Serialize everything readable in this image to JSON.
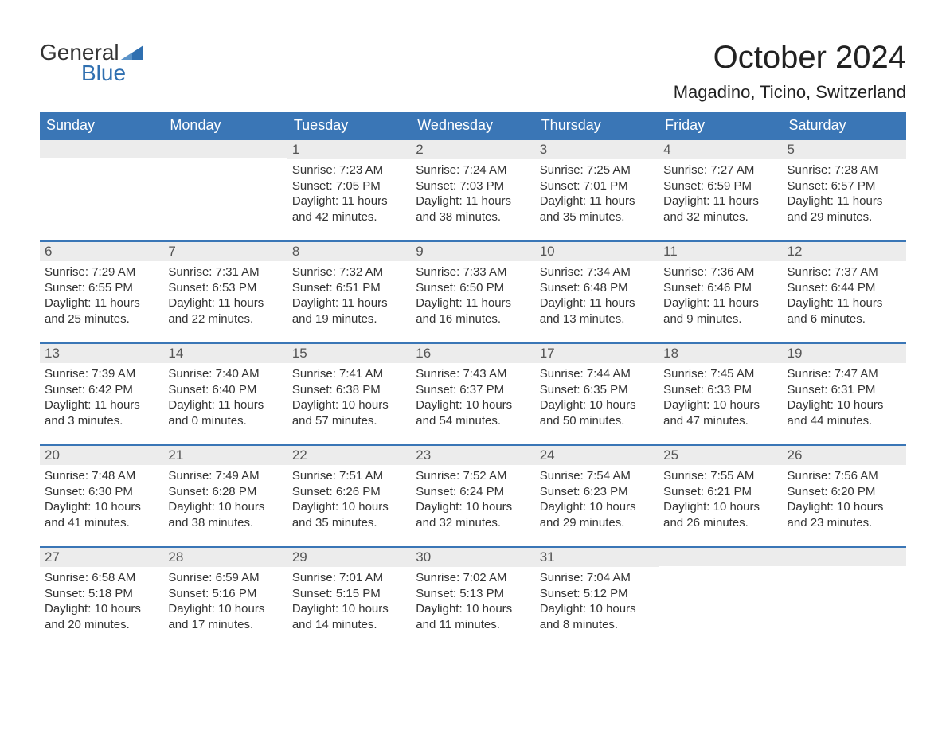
{
  "brand": {
    "word1": "General",
    "word2": "Blue",
    "logo_color": "#2f6fb0",
    "text_color": "#333333"
  },
  "header": {
    "month_title": "October 2024",
    "location": "Magadino, Ticino, Switzerland"
  },
  "styling": {
    "header_bg": "#3a76b6",
    "header_text": "#ffffff",
    "day_number_bg": "#ececec",
    "day_number_border": "#3a76b6",
    "body_text": "#333333",
    "page_bg": "#ffffff",
    "title_fontsize": 40,
    "location_fontsize": 22,
    "header_fontsize": 18,
    "day_number_fontsize": 17,
    "content_fontsize": 15
  },
  "weekdays": [
    "Sunday",
    "Monday",
    "Tuesday",
    "Wednesday",
    "Thursday",
    "Friday",
    "Saturday"
  ],
  "weeks": [
    [
      {
        "empty": true
      },
      {
        "empty": true
      },
      {
        "day": "1",
        "sunrise": "Sunrise: 7:23 AM",
        "sunset": "Sunset: 7:05 PM",
        "daylight1": "Daylight: 11 hours",
        "daylight2": "and 42 minutes."
      },
      {
        "day": "2",
        "sunrise": "Sunrise: 7:24 AM",
        "sunset": "Sunset: 7:03 PM",
        "daylight1": "Daylight: 11 hours",
        "daylight2": "and 38 minutes."
      },
      {
        "day": "3",
        "sunrise": "Sunrise: 7:25 AM",
        "sunset": "Sunset: 7:01 PM",
        "daylight1": "Daylight: 11 hours",
        "daylight2": "and 35 minutes."
      },
      {
        "day": "4",
        "sunrise": "Sunrise: 7:27 AM",
        "sunset": "Sunset: 6:59 PM",
        "daylight1": "Daylight: 11 hours",
        "daylight2": "and 32 minutes."
      },
      {
        "day": "5",
        "sunrise": "Sunrise: 7:28 AM",
        "sunset": "Sunset: 6:57 PM",
        "daylight1": "Daylight: 11 hours",
        "daylight2": "and 29 minutes."
      }
    ],
    [
      {
        "day": "6",
        "sunrise": "Sunrise: 7:29 AM",
        "sunset": "Sunset: 6:55 PM",
        "daylight1": "Daylight: 11 hours",
        "daylight2": "and 25 minutes."
      },
      {
        "day": "7",
        "sunrise": "Sunrise: 7:31 AM",
        "sunset": "Sunset: 6:53 PM",
        "daylight1": "Daylight: 11 hours",
        "daylight2": "and 22 minutes."
      },
      {
        "day": "8",
        "sunrise": "Sunrise: 7:32 AM",
        "sunset": "Sunset: 6:51 PM",
        "daylight1": "Daylight: 11 hours",
        "daylight2": "and 19 minutes."
      },
      {
        "day": "9",
        "sunrise": "Sunrise: 7:33 AM",
        "sunset": "Sunset: 6:50 PM",
        "daylight1": "Daylight: 11 hours",
        "daylight2": "and 16 minutes."
      },
      {
        "day": "10",
        "sunrise": "Sunrise: 7:34 AM",
        "sunset": "Sunset: 6:48 PM",
        "daylight1": "Daylight: 11 hours",
        "daylight2": "and 13 minutes."
      },
      {
        "day": "11",
        "sunrise": "Sunrise: 7:36 AM",
        "sunset": "Sunset: 6:46 PM",
        "daylight1": "Daylight: 11 hours",
        "daylight2": "and 9 minutes."
      },
      {
        "day": "12",
        "sunrise": "Sunrise: 7:37 AM",
        "sunset": "Sunset: 6:44 PM",
        "daylight1": "Daylight: 11 hours",
        "daylight2": "and 6 minutes."
      }
    ],
    [
      {
        "day": "13",
        "sunrise": "Sunrise: 7:39 AM",
        "sunset": "Sunset: 6:42 PM",
        "daylight1": "Daylight: 11 hours",
        "daylight2": "and 3 minutes."
      },
      {
        "day": "14",
        "sunrise": "Sunrise: 7:40 AM",
        "sunset": "Sunset: 6:40 PM",
        "daylight1": "Daylight: 11 hours",
        "daylight2": "and 0 minutes."
      },
      {
        "day": "15",
        "sunrise": "Sunrise: 7:41 AM",
        "sunset": "Sunset: 6:38 PM",
        "daylight1": "Daylight: 10 hours",
        "daylight2": "and 57 minutes."
      },
      {
        "day": "16",
        "sunrise": "Sunrise: 7:43 AM",
        "sunset": "Sunset: 6:37 PM",
        "daylight1": "Daylight: 10 hours",
        "daylight2": "and 54 minutes."
      },
      {
        "day": "17",
        "sunrise": "Sunrise: 7:44 AM",
        "sunset": "Sunset: 6:35 PM",
        "daylight1": "Daylight: 10 hours",
        "daylight2": "and 50 minutes."
      },
      {
        "day": "18",
        "sunrise": "Sunrise: 7:45 AM",
        "sunset": "Sunset: 6:33 PM",
        "daylight1": "Daylight: 10 hours",
        "daylight2": "and 47 minutes."
      },
      {
        "day": "19",
        "sunrise": "Sunrise: 7:47 AM",
        "sunset": "Sunset: 6:31 PM",
        "daylight1": "Daylight: 10 hours",
        "daylight2": "and 44 minutes."
      }
    ],
    [
      {
        "day": "20",
        "sunrise": "Sunrise: 7:48 AM",
        "sunset": "Sunset: 6:30 PM",
        "daylight1": "Daylight: 10 hours",
        "daylight2": "and 41 minutes."
      },
      {
        "day": "21",
        "sunrise": "Sunrise: 7:49 AM",
        "sunset": "Sunset: 6:28 PM",
        "daylight1": "Daylight: 10 hours",
        "daylight2": "and 38 minutes."
      },
      {
        "day": "22",
        "sunrise": "Sunrise: 7:51 AM",
        "sunset": "Sunset: 6:26 PM",
        "daylight1": "Daylight: 10 hours",
        "daylight2": "and 35 minutes."
      },
      {
        "day": "23",
        "sunrise": "Sunrise: 7:52 AM",
        "sunset": "Sunset: 6:24 PM",
        "daylight1": "Daylight: 10 hours",
        "daylight2": "and 32 minutes."
      },
      {
        "day": "24",
        "sunrise": "Sunrise: 7:54 AM",
        "sunset": "Sunset: 6:23 PM",
        "daylight1": "Daylight: 10 hours",
        "daylight2": "and 29 minutes."
      },
      {
        "day": "25",
        "sunrise": "Sunrise: 7:55 AM",
        "sunset": "Sunset: 6:21 PM",
        "daylight1": "Daylight: 10 hours",
        "daylight2": "and 26 minutes."
      },
      {
        "day": "26",
        "sunrise": "Sunrise: 7:56 AM",
        "sunset": "Sunset: 6:20 PM",
        "daylight1": "Daylight: 10 hours",
        "daylight2": "and 23 minutes."
      }
    ],
    [
      {
        "day": "27",
        "sunrise": "Sunrise: 6:58 AM",
        "sunset": "Sunset: 5:18 PM",
        "daylight1": "Daylight: 10 hours",
        "daylight2": "and 20 minutes."
      },
      {
        "day": "28",
        "sunrise": "Sunrise: 6:59 AM",
        "sunset": "Sunset: 5:16 PM",
        "daylight1": "Daylight: 10 hours",
        "daylight2": "and 17 minutes."
      },
      {
        "day": "29",
        "sunrise": "Sunrise: 7:01 AM",
        "sunset": "Sunset: 5:15 PM",
        "daylight1": "Daylight: 10 hours",
        "daylight2": "and 14 minutes."
      },
      {
        "day": "30",
        "sunrise": "Sunrise: 7:02 AM",
        "sunset": "Sunset: 5:13 PM",
        "daylight1": "Daylight: 10 hours",
        "daylight2": "and 11 minutes."
      },
      {
        "day": "31",
        "sunrise": "Sunrise: 7:04 AM",
        "sunset": "Sunset: 5:12 PM",
        "daylight1": "Daylight: 10 hours",
        "daylight2": "and 8 minutes."
      },
      {
        "empty": true,
        "trailing": true
      },
      {
        "empty": true,
        "trailing": true
      }
    ]
  ]
}
